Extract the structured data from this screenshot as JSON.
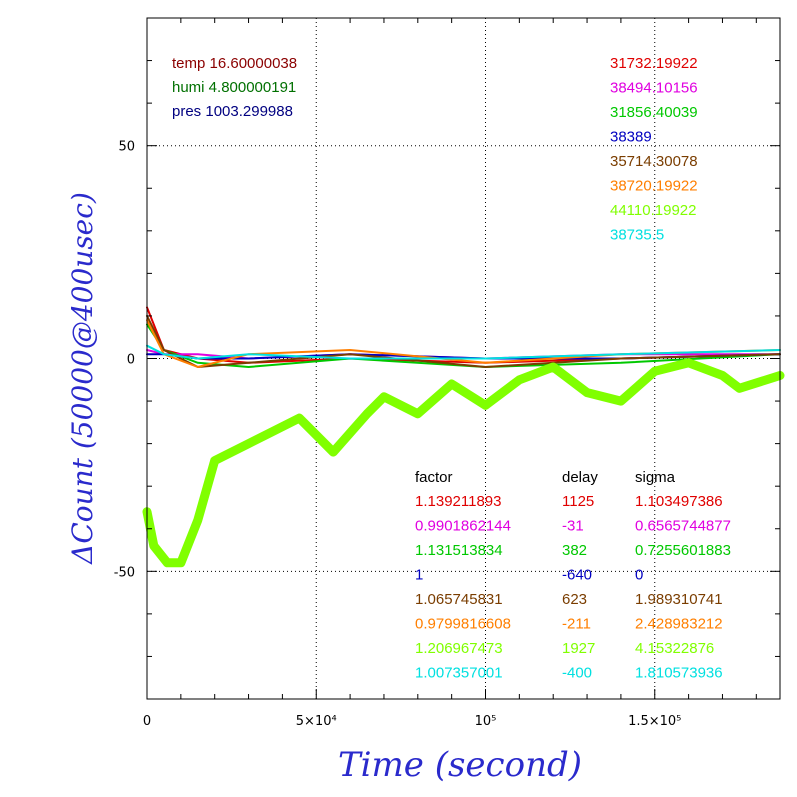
{
  "chart_data": {
    "type": "line",
    "xlabel": "Time (second)",
    "ylabel": "ΔCount (50000@400usec)",
    "xlim": [
      0,
      187000
    ],
    "ylim": [
      -80,
      80
    ],
    "x_ticks": [
      {
        "value": 0,
        "label": "0"
      },
      {
        "value": 50000,
        "label": "5×10⁴"
      },
      {
        "value": 100000,
        "label": "10⁵"
      },
      {
        "value": 150000,
        "label": "1.5×10⁵"
      }
    ],
    "y_ticks": [
      {
        "value": 50,
        "label": "50"
      },
      {
        "value": 0,
        "label": "0"
      },
      {
        "value": -50,
        "label": "-50"
      }
    ],
    "grid": true,
    "env": [
      {
        "label": "temp 16.60000038",
        "color": "#8b0000"
      },
      {
        "label": "humi 4.800000191",
        "color": "#007000"
      },
      {
        "label": "pres 1003.299988",
        "color": "#000080"
      }
    ],
    "legend_headers": {
      "factor": "factor",
      "delay": "delay",
      "sigma": "sigma"
    },
    "series": [
      {
        "name": "31732.19922",
        "color": "#e00000",
        "factor": "1.139211893",
        "delay": "1125",
        "sigma": "1.103497386",
        "x": [
          0,
          5000,
          15000,
          30000,
          60000,
          100000,
          140000,
          187000
        ],
        "y": [
          12,
          2,
          0,
          -1,
          0,
          -1,
          0,
          1
        ]
      },
      {
        "name": "38494.10156",
        "color": "#e000e0",
        "factor": "0.9901862144",
        "delay": "-31",
        "sigma": "0.6565744877",
        "x": [
          0,
          5000,
          15000,
          30000,
          60000,
          100000,
          140000,
          187000
        ],
        "y": [
          2,
          1,
          1,
          0,
          1,
          0,
          1,
          1
        ]
      },
      {
        "name": "31856.40039",
        "color": "#00c800",
        "factor": "1.131513834",
        "delay": "382",
        "sigma": "0.7255601883",
        "x": [
          0,
          5000,
          15000,
          30000,
          60000,
          100000,
          140000,
          187000
        ],
        "y": [
          8,
          2,
          -1,
          -2,
          0,
          -2,
          -1,
          1
        ]
      },
      {
        "name": "38389",
        "color": "#0000c0",
        "factor": "1",
        "delay": "-640",
        "sigma": "0",
        "x": [
          0,
          5000,
          15000,
          30000,
          60000,
          100000,
          140000,
          187000
        ],
        "y": [
          1,
          1,
          0,
          0,
          1,
          0,
          0,
          1
        ]
      },
      {
        "name": "35714.30078",
        "color": "#7a3d00",
        "factor": "1.065745831",
        "delay": "623",
        "sigma": "1.989310741",
        "x": [
          0,
          5000,
          15000,
          30000,
          60000,
          100000,
          140000,
          187000
        ],
        "y": [
          10,
          2,
          -2,
          -1,
          1,
          -2,
          0,
          1
        ]
      },
      {
        "name": "38720.19922",
        "color": "#ff7f00",
        "factor": "0.9799816608",
        "delay": "-211",
        "sigma": "2.428983212",
        "x": [
          0,
          5000,
          15000,
          30000,
          60000,
          100000,
          140000,
          187000
        ],
        "y": [
          9,
          1,
          -2,
          1,
          2,
          -1,
          1,
          2
        ]
      },
      {
        "name": "44110.19922",
        "color": "#80ff00",
        "factor": "1.206967473",
        "delay": "1927",
        "sigma": "4.15322876",
        "x": [
          0,
          2000,
          6000,
          10000,
          15000,
          20000,
          30000,
          35000,
          45000,
          50000,
          55000,
          65000,
          70000,
          80000,
          90000,
          100000,
          110000,
          120000,
          130000,
          140000,
          150000,
          160000,
          170000,
          175000,
          187000
        ],
        "y": [
          -36,
          -44,
          -48,
          -48,
          -38,
          -24,
          -20,
          -18,
          -14,
          -18,
          -22,
          -13,
          -9,
          -13,
          -6,
          -11,
          -5,
          -2,
          -8,
          -10,
          -3,
          -1,
          -4,
          -7,
          -4
        ]
      },
      {
        "name": "38735.5",
        "color": "#00e0e0",
        "factor": "1.007357001",
        "delay": "-400",
        "sigma": "1.810573936",
        "x": [
          0,
          5000,
          15000,
          30000,
          60000,
          100000,
          140000,
          187000
        ],
        "y": [
          3,
          1,
          0,
          1,
          0,
          0,
          1,
          2
        ]
      }
    ]
  }
}
